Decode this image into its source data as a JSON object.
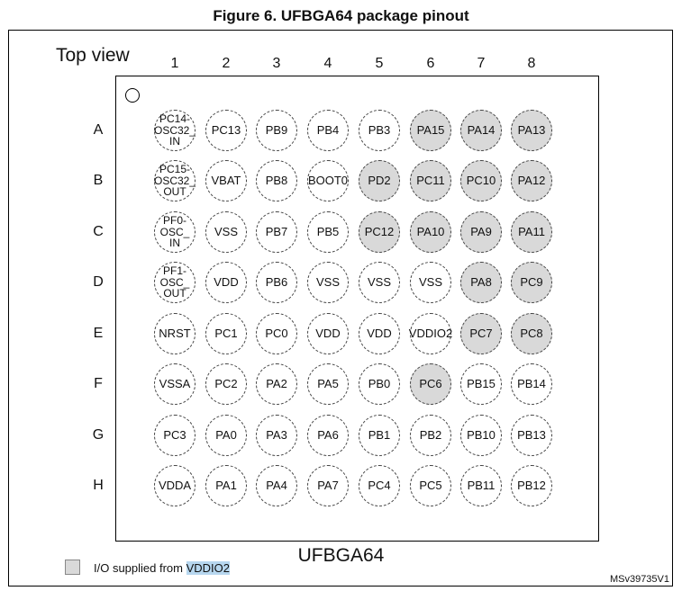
{
  "figure": {
    "title": "Figure 6. UFBGA64 package pinout",
    "view_label": "Top view",
    "package_name": "UFBGA64",
    "columns": [
      "1",
      "2",
      "3",
      "4",
      "5",
      "6",
      "7",
      "8"
    ],
    "rows": [
      "A",
      "B",
      "C",
      "D",
      "E",
      "F",
      "G",
      "H"
    ],
    "legend": {
      "text_prefix": "I/O supplied from ",
      "text_highlight": "VDDIO2",
      "swatch_color": "#d9d9d9"
    },
    "doc_ref": "MSv39735V1"
  },
  "pins": [
    [
      {
        "label": "PC14-\nOSC32_\nIN",
        "vddio2": false
      },
      {
        "label": "PC13",
        "vddio2": false
      },
      {
        "label": "PB9",
        "vddio2": false
      },
      {
        "label": "PB4",
        "vddio2": false
      },
      {
        "label": "PB3",
        "vddio2": false
      },
      {
        "label": "PA15",
        "vddio2": true
      },
      {
        "label": "PA14",
        "vddio2": true
      },
      {
        "label": "PA13",
        "vddio2": true
      }
    ],
    [
      {
        "label": "PC15-\nOSC32_\nOUT",
        "vddio2": false
      },
      {
        "label": "VBAT",
        "vddio2": false
      },
      {
        "label": "PB8",
        "vddio2": false
      },
      {
        "label": "BOOT0",
        "vddio2": false
      },
      {
        "label": "PD2",
        "vddio2": true
      },
      {
        "label": "PC11",
        "vddio2": true
      },
      {
        "label": "PC10",
        "vddio2": true
      },
      {
        "label": "PA12",
        "vddio2": true
      }
    ],
    [
      {
        "label": "PF0-\nOSC_\nIN",
        "vddio2": false
      },
      {
        "label": "VSS",
        "vddio2": false
      },
      {
        "label": "PB7",
        "vddio2": false
      },
      {
        "label": "PB5",
        "vddio2": false
      },
      {
        "label": "PC12",
        "vddio2": true
      },
      {
        "label": "PA10",
        "vddio2": true
      },
      {
        "label": "PA9",
        "vddio2": true
      },
      {
        "label": "PA11",
        "vddio2": true
      }
    ],
    [
      {
        "label": "PF1-\nOSC_\nOUT",
        "vddio2": false
      },
      {
        "label": "VDD",
        "vddio2": false
      },
      {
        "label": "PB6",
        "vddio2": false
      },
      {
        "label": "VSS",
        "vddio2": false
      },
      {
        "label": "VSS",
        "vddio2": false
      },
      {
        "label": "VSS",
        "vddio2": false
      },
      {
        "label": "PA8",
        "vddio2": true
      },
      {
        "label": "PC9",
        "vddio2": true
      }
    ],
    [
      {
        "label": "NRST",
        "vddio2": false
      },
      {
        "label": "PC1",
        "vddio2": false
      },
      {
        "label": "PC0",
        "vddio2": false
      },
      {
        "label": "VDD",
        "vddio2": false
      },
      {
        "label": "VDD",
        "vddio2": false
      },
      {
        "label": "VDDIO2",
        "vddio2": false
      },
      {
        "label": "PC7",
        "vddio2": true
      },
      {
        "label": "PC8",
        "vddio2": true
      }
    ],
    [
      {
        "label": "VSSA",
        "vddio2": false
      },
      {
        "label": "PC2",
        "vddio2": false
      },
      {
        "label": "PA2",
        "vddio2": false
      },
      {
        "label": "PA5",
        "vddio2": false
      },
      {
        "label": "PB0",
        "vddio2": false
      },
      {
        "label": "PC6",
        "vddio2": true
      },
      {
        "label": "PB15",
        "vddio2": false
      },
      {
        "label": "PB14",
        "vddio2": false
      }
    ],
    [
      {
        "label": "PC3",
        "vddio2": false
      },
      {
        "label": "PA0",
        "vddio2": false
      },
      {
        "label": "PA3",
        "vddio2": false
      },
      {
        "label": "PA6",
        "vddio2": false
      },
      {
        "label": "PB1",
        "vddio2": false
      },
      {
        "label": "PB2",
        "vddio2": false
      },
      {
        "label": "PB10",
        "vddio2": false
      },
      {
        "label": "PB13",
        "vddio2": false
      }
    ],
    [
      {
        "label": "VDDA",
        "vddio2": false
      },
      {
        "label": "PA1",
        "vddio2": false
      },
      {
        "label": "PA4",
        "vddio2": false
      },
      {
        "label": "PA7",
        "vddio2": false
      },
      {
        "label": "PC4",
        "vddio2": false
      },
      {
        "label": "PC5",
        "vddio2": false
      },
      {
        "label": "PB11",
        "vddio2": false
      },
      {
        "label": "PB12",
        "vddio2": false
      }
    ]
  ]
}
